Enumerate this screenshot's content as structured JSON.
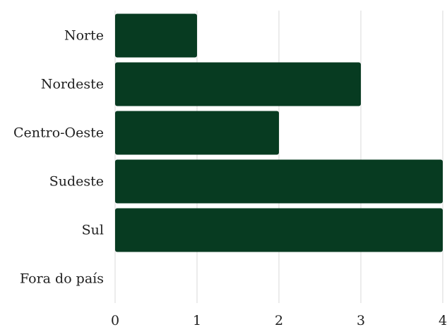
{
  "colors": {
    "bar": "#073b21",
    "grid": "#d9d9d9",
    "text": "#1f1f1f",
    "background": "#ffffff"
  },
  "chart_data": {
    "type": "bar",
    "orientation": "horizontal",
    "title": "",
    "xlabel": "",
    "ylabel": "",
    "categories": [
      "Norte",
      "Nordeste",
      "Centro-Oeste",
      "Sudeste",
      "Sul",
      "Fora do país"
    ],
    "values": [
      1,
      3,
      2,
      4,
      4,
      0
    ],
    "xlim": [
      0,
      4
    ],
    "x_ticks": [
      "0",
      "1",
      "2",
      "3",
      "4"
    ],
    "grid": "vertical",
    "legend": "none"
  }
}
